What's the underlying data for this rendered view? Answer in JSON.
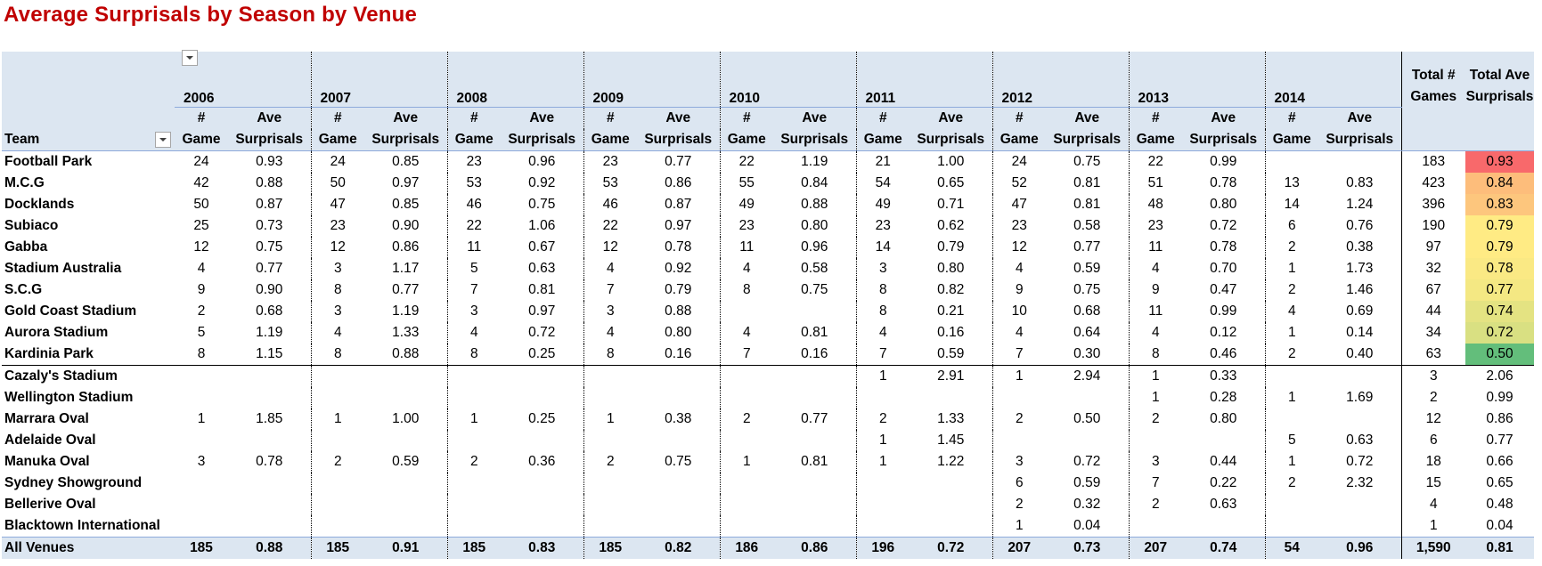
{
  "title": "Average Surprisals by Season by Venue",
  "headers": {
    "team": "Team",
    "game_label_1": "#",
    "game_label_2": "Game",
    "ave_label_1": "Ave",
    "ave_label_2": "Surprisals",
    "total_games_1": "Total #",
    "total_games_2": "Games",
    "total_ave_1": "Total Ave",
    "total_ave_2": "Surprisals"
  },
  "years": [
    "2006",
    "2007",
    "2008",
    "2009",
    "2010",
    "2011",
    "2012",
    "2013",
    "2014"
  ],
  "scale_colors": {
    "low": "#63be7b",
    "mid": "#ffeb84",
    "high": "#f8696b"
  },
  "chart_data": {
    "type": "table",
    "title": "Average Surprisals by Season by Venue",
    "columns": [
      "Team",
      "2006 # Game",
      "2006 Ave Surprisals",
      "2007 # Game",
      "2007 Ave Surprisals",
      "2008 # Game",
      "2008 Ave Surprisals",
      "2009 # Game",
      "2009 Ave Surprisals",
      "2010 # Game",
      "2010 Ave Surprisals",
      "2011 # Game",
      "2011 Ave Surprisals",
      "2012 # Game",
      "2012 Ave Surprisals",
      "2013 # Game",
      "2013 Ave Surprisals",
      "2014 # Game",
      "2014 Ave Surprisals",
      "Total # Games",
      "Total Ave Surprisals"
    ],
    "rows": [
      {
        "team": "Football Park",
        "cells": [
          "24",
          "0.93",
          "24",
          "0.85",
          "23",
          "0.96",
          "23",
          "0.77",
          "22",
          "1.19",
          "21",
          "1.00",
          "24",
          "0.75",
          "22",
          "0.99",
          "",
          ""
        ],
        "total_games": "183",
        "total_ave": "0.93",
        "highlight": 0.93
      },
      {
        "team": "M.C.G",
        "cells": [
          "42",
          "0.88",
          "50",
          "0.97",
          "53",
          "0.92",
          "53",
          "0.86",
          "55",
          "0.84",
          "54",
          "0.65",
          "52",
          "0.81",
          "51",
          "0.78",
          "13",
          "0.83"
        ],
        "total_games": "423",
        "total_ave": "0.84",
        "highlight": 0.84
      },
      {
        "team": "Docklands",
        "cells": [
          "50",
          "0.87",
          "47",
          "0.85",
          "46",
          "0.75",
          "46",
          "0.87",
          "49",
          "0.88",
          "49",
          "0.71",
          "47",
          "0.81",
          "48",
          "0.80",
          "14",
          "1.24"
        ],
        "total_games": "396",
        "total_ave": "0.83",
        "highlight": 0.83
      },
      {
        "team": "Subiaco",
        "cells": [
          "25",
          "0.73",
          "23",
          "0.90",
          "22",
          "1.06",
          "22",
          "0.97",
          "23",
          "0.80",
          "23",
          "0.62",
          "23",
          "0.58",
          "23",
          "0.72",
          "6",
          "0.76"
        ],
        "total_games": "190",
        "total_ave": "0.79",
        "highlight": 0.79
      },
      {
        "team": "Gabba",
        "cells": [
          "12",
          "0.75",
          "12",
          "0.86",
          "11",
          "0.67",
          "12",
          "0.78",
          "11",
          "0.96",
          "14",
          "0.79",
          "12",
          "0.77",
          "11",
          "0.78",
          "2",
          "0.38"
        ],
        "total_games": "97",
        "total_ave": "0.79",
        "highlight": 0.79
      },
      {
        "team": "Stadium Australia",
        "cells": [
          "4",
          "0.77",
          "3",
          "1.17",
          "5",
          "0.63",
          "4",
          "0.92",
          "4",
          "0.58",
          "3",
          "0.80",
          "4",
          "0.59",
          "4",
          "0.70",
          "1",
          "1.73"
        ],
        "total_games": "32",
        "total_ave": "0.78",
        "highlight": 0.78
      },
      {
        "team": "S.C.G",
        "cells": [
          "9",
          "0.90",
          "8",
          "0.77",
          "7",
          "0.81",
          "7",
          "0.79",
          "8",
          "0.75",
          "8",
          "0.82",
          "9",
          "0.75",
          "9",
          "0.47",
          "2",
          "1.46"
        ],
        "total_games": "67",
        "total_ave": "0.77",
        "highlight": 0.77
      },
      {
        "team": "Gold Coast Stadium",
        "cells": [
          "2",
          "0.68",
          "3",
          "1.19",
          "3",
          "0.97",
          "3",
          "0.88",
          "",
          "",
          "8",
          "0.21",
          "10",
          "0.68",
          "11",
          "0.99",
          "4",
          "0.69"
        ],
        "total_games": "44",
        "total_ave": "0.74",
        "highlight": 0.74
      },
      {
        "team": "Aurora Stadium",
        "cells": [
          "5",
          "1.19",
          "4",
          "1.33",
          "4",
          "0.72",
          "4",
          "0.80",
          "4",
          "0.81",
          "4",
          "0.16",
          "4",
          "0.64",
          "4",
          "0.12",
          "1",
          "0.14"
        ],
        "total_games": "34",
        "total_ave": "0.72",
        "highlight": 0.72
      },
      {
        "team": "Kardinia Park",
        "cells": [
          "8",
          "1.15",
          "8",
          "0.88",
          "8",
          "0.25",
          "8",
          "0.16",
          "7",
          "0.16",
          "7",
          "0.59",
          "7",
          "0.30",
          "8",
          "0.46",
          "2",
          "0.40"
        ],
        "total_games": "63",
        "total_ave": "0.50",
        "highlight": 0.5
      },
      {
        "team": "Cazaly's Stadium",
        "cells": [
          "",
          "",
          "",
          "",
          "",
          "",
          "",
          "",
          "",
          "",
          "1",
          "2.91",
          "1",
          "2.94",
          "1",
          "0.33",
          "",
          ""
        ],
        "total_games": "3",
        "total_ave": "2.06"
      },
      {
        "team": "Wellington Stadium",
        "cells": [
          "",
          "",
          "",
          "",
          "",
          "",
          "",
          "",
          "",
          "",
          "",
          "",
          "",
          "",
          "1",
          "0.28",
          "1",
          "1.69"
        ],
        "total_games": "2",
        "total_ave": "0.99"
      },
      {
        "team": "Marrara Oval",
        "cells": [
          "1",
          "1.85",
          "1",
          "1.00",
          "1",
          "0.25",
          "1",
          "0.38",
          "2",
          "0.77",
          "2",
          "1.33",
          "2",
          "0.50",
          "2",
          "0.80",
          "",
          ""
        ],
        "total_games": "12",
        "total_ave": "0.86"
      },
      {
        "team": "Adelaide Oval",
        "cells": [
          "",
          "",
          "",
          "",
          "",
          "",
          "",
          "",
          "",
          "",
          "1",
          "1.45",
          "",
          "",
          "",
          "",
          "5",
          "0.63"
        ],
        "total_games": "6",
        "total_ave": "0.77"
      },
      {
        "team": "Manuka Oval",
        "cells": [
          "3",
          "0.78",
          "2",
          "0.59",
          "2",
          "0.36",
          "2",
          "0.75",
          "1",
          "0.81",
          "1",
          "1.22",
          "3",
          "0.72",
          "3",
          "0.44",
          "1",
          "0.72"
        ],
        "total_games": "18",
        "total_ave": "0.66"
      },
      {
        "team": "Sydney Showground",
        "cells": [
          "",
          "",
          "",
          "",
          "",
          "",
          "",
          "",
          "",
          "",
          "",
          "",
          "6",
          "0.59",
          "7",
          "0.22",
          "2",
          "2.32"
        ],
        "total_games": "15",
        "total_ave": "0.65"
      },
      {
        "team": "Bellerive Oval",
        "cells": [
          "",
          "",
          "",
          "",
          "",
          "",
          "",
          "",
          "",
          "",
          "",
          "",
          "2",
          "0.32",
          "2",
          "0.63",
          "",
          ""
        ],
        "total_games": "4",
        "total_ave": "0.48"
      },
      {
        "team": "Blacktown International",
        "cells": [
          "",
          "",
          "",
          "",
          "",
          "",
          "",
          "",
          "",
          "",
          "",
          "",
          "1",
          "0.04",
          "",
          "",
          "",
          ""
        ],
        "total_games": "1",
        "total_ave": "0.04"
      }
    ],
    "footer": {
      "team": "All Venues",
      "cells": [
        "185",
        "0.88",
        "185",
        "0.91",
        "185",
        "0.83",
        "185",
        "0.82",
        "186",
        "0.86",
        "196",
        "0.72",
        "207",
        "0.73",
        "207",
        "0.74",
        "54",
        "0.96"
      ],
      "total_games": "1,590",
      "total_ave": "0.81"
    }
  }
}
